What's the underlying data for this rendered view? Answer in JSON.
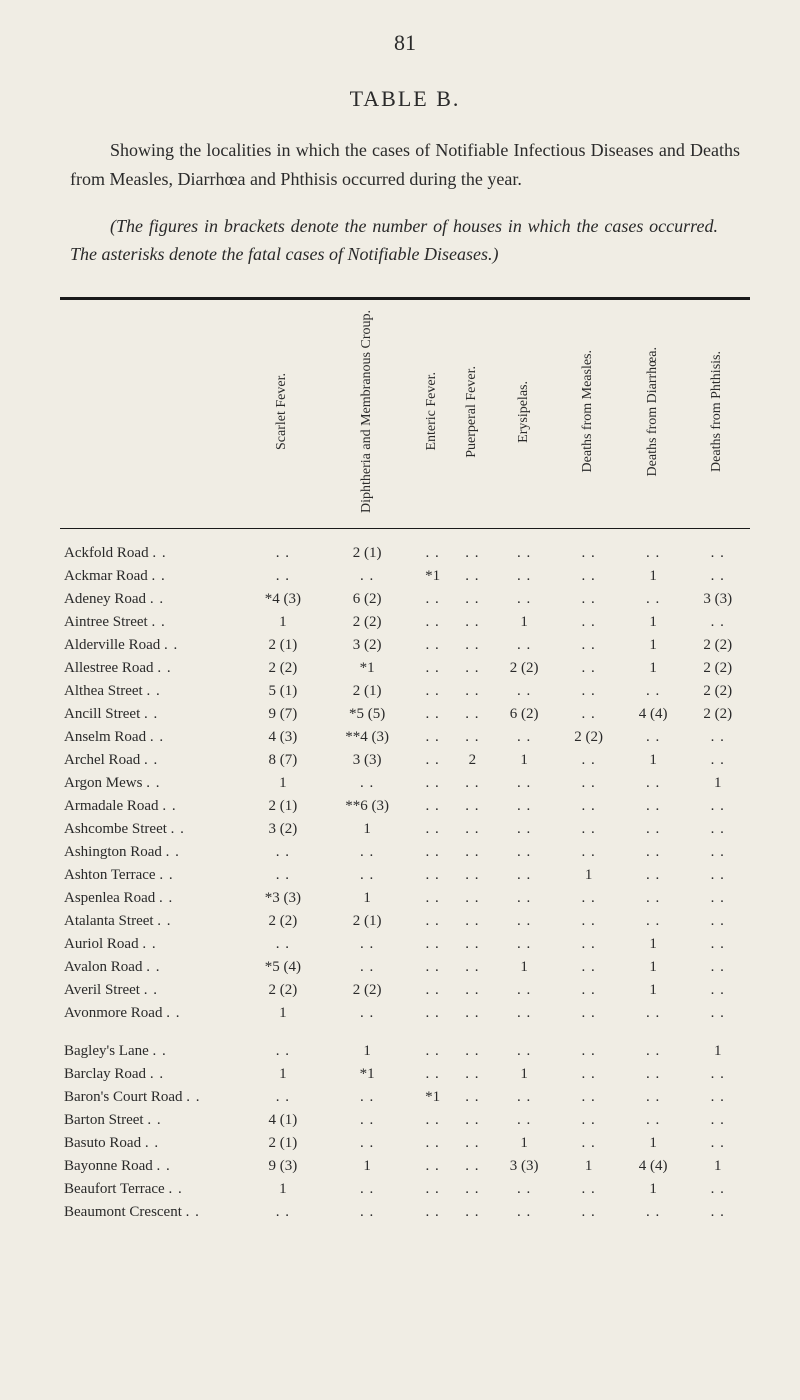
{
  "page_number": "81",
  "table_title": "TABLE B.",
  "intro1_a": "Showing the localities in which the cases of Notifiable Infectious Diseases and Deaths from Measles, Diarrhœa and Phthisis occurred during the year.",
  "intro2_a": "(The figures in brackets denote the number of houses in which the cases occurred.",
  "intro2_b": "The asterisks denote the fatal cases of Notifiable Diseases.)",
  "columns": [
    "Scarlet Fever.",
    "Diphtheria and Membranous Croup.",
    "Enteric Fever.",
    "Puerperal Fever.",
    "Erysipelas.",
    "Deaths from Measles.",
    "Deaths from Diarrhœa.",
    "Deaths from Phthisis."
  ],
  "rows": [
    {
      "l": "Ackfold Road",
      "c": [
        "..",
        "2 (1)",
        "..",
        "..",
        "..",
        "..",
        "..",
        ".."
      ]
    },
    {
      "l": "Ackmar Road",
      "c": [
        "..",
        "..",
        "*1",
        "..",
        "..",
        "..",
        "1",
        ".."
      ]
    },
    {
      "l": "Adeney Road",
      "c": [
        "*4 (3)",
        "6 (2)",
        "..",
        "..",
        "..",
        "..",
        "..",
        "3 (3)"
      ]
    },
    {
      "l": "Aintree Street",
      "c": [
        "1",
        "2 (2)",
        "..",
        "..",
        "1",
        "..",
        "1",
        ".."
      ]
    },
    {
      "l": "Alderville Road",
      "c": [
        "2 (1)",
        "3 (2)",
        "..",
        "..",
        "..",
        "..",
        "1",
        "2 (2)"
      ]
    },
    {
      "l": "Allestree Road",
      "c": [
        "2 (2)",
        "*1",
        "..",
        "..",
        "2 (2)",
        "..",
        "1",
        "2 (2)"
      ]
    },
    {
      "l": "Althea Street",
      "c": [
        "5 (1)",
        "2 (1)",
        "..",
        "..",
        "..",
        "..",
        "..",
        "2 (2)"
      ]
    },
    {
      "l": "Ancill Street",
      "c": [
        "9 (7)",
        "*5 (5)",
        "..",
        "..",
        "6 (2)",
        "..",
        "4 (4)",
        "2 (2)"
      ]
    },
    {
      "l": "Anselm Road",
      "c": [
        "4 (3)",
        "**4 (3)",
        "..",
        "..",
        "..",
        "2 (2)",
        "..",
        ".."
      ]
    },
    {
      "l": "Archel Road",
      "c": [
        "8 (7)",
        "3 (3)",
        "..",
        "2",
        "1",
        "..",
        "1",
        ".."
      ]
    },
    {
      "l": "Argon Mews",
      "c": [
        "1",
        "..",
        "..",
        "..",
        "..",
        "..",
        "..",
        "1"
      ]
    },
    {
      "l": "Armadale Road",
      "c": [
        "2 (1)",
        "**6 (3)",
        "..",
        "..",
        "..",
        "..",
        "..",
        ".."
      ]
    },
    {
      "l": "Ashcombe Street",
      "c": [
        "3 (2)",
        "1",
        "..",
        "..",
        "..",
        "..",
        "..",
        ".."
      ]
    },
    {
      "l": "Ashington Road",
      "c": [
        "..",
        "..",
        "..",
        "..",
        "..",
        "..",
        "..",
        ".."
      ]
    },
    {
      "l": "Ashton Terrace",
      "c": [
        "..",
        "..",
        "..",
        "..",
        "..",
        "1",
        "..",
        ".."
      ]
    },
    {
      "l": "Aspenlea Road",
      "c": [
        "*3 (3)",
        "1",
        "..",
        "..",
        "..",
        "..",
        "..",
        ".."
      ]
    },
    {
      "l": "Atalanta Street",
      "c": [
        "2 (2)",
        "2 (1)",
        "..",
        "..",
        "..",
        "..",
        "..",
        ".."
      ]
    },
    {
      "l": "Auriol Road",
      "c": [
        "..",
        "..",
        "..",
        "..",
        "..",
        "..",
        "1",
        ".."
      ]
    },
    {
      "l": "Avalon Road",
      "c": [
        "*5 (4)",
        "..",
        "..",
        "..",
        "1",
        "..",
        "1",
        ".."
      ]
    },
    {
      "l": "Averil Street",
      "c": [
        "2 (2)",
        "2 (2)",
        "..",
        "..",
        "..",
        "..",
        "1",
        ".."
      ]
    },
    {
      "l": "Avonmore Road",
      "c": [
        "1",
        "..",
        "..",
        "..",
        "..",
        "..",
        "..",
        ".."
      ]
    },
    {
      "l": "Bagley's Lane",
      "c": [
        "..",
        "1",
        "..",
        "..",
        "..",
        "..",
        "..",
        "1"
      ],
      "gap": true
    },
    {
      "l": "Barclay Road",
      "c": [
        "1",
        "*1",
        "..",
        "..",
        "1",
        "..",
        "..",
        ".."
      ]
    },
    {
      "l": "Baron's Court Road",
      "c": [
        "..",
        "..",
        "*1",
        "..",
        "..",
        "..",
        "..",
        ".."
      ]
    },
    {
      "l": "Barton Street",
      "c": [
        "4 (1)",
        "..",
        "..",
        "..",
        "..",
        "..",
        "..",
        ".."
      ]
    },
    {
      "l": "Basuto Road",
      "c": [
        "2 (1)",
        "..",
        "..",
        "..",
        "1",
        "..",
        "1",
        ".."
      ]
    },
    {
      "l": "Bayonne Road",
      "c": [
        "9 (3)",
        "1",
        "..",
        "..",
        "3 (3)",
        "1",
        "4 (4)",
        "1"
      ]
    },
    {
      "l": "Beaufort Terrace",
      "c": [
        "1",
        "..",
        "..",
        "..",
        "..",
        "..",
        "1",
        ".."
      ]
    },
    {
      "l": "Beaumont Crescent",
      "c": [
        "..",
        "..",
        "..",
        "..",
        "..",
        "..",
        "..",
        ".."
      ]
    }
  ]
}
